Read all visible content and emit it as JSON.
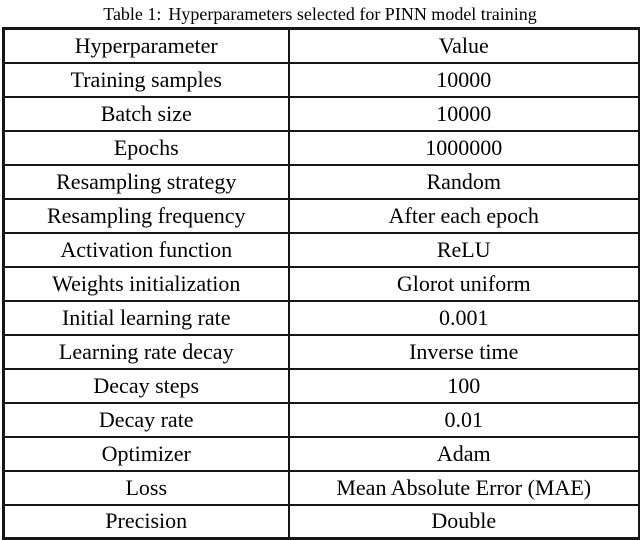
{
  "caption": {
    "label": "Table 1:",
    "text": "Hyperparameters selected for PINN model training"
  },
  "table": {
    "headers": [
      "Hyperparameter",
      "Value"
    ],
    "rows": [
      {
        "param": "Training samples",
        "value": "10000"
      },
      {
        "param": "Batch size",
        "value": "10000"
      },
      {
        "param": "Epochs",
        "value": "1000000"
      },
      {
        "param": "Resampling strategy",
        "value": "Random"
      },
      {
        "param": "Resampling frequency",
        "value": "After each epoch"
      },
      {
        "param": "Activation function",
        "value": "ReLU"
      },
      {
        "param": "Weights initialization",
        "value": "Glorot uniform"
      },
      {
        "param": "Initial learning rate",
        "value": "0.001"
      },
      {
        "param": "Learning rate decay",
        "value": "Inverse time"
      },
      {
        "param": "Decay steps",
        "value": "100"
      },
      {
        "param": "Decay rate",
        "value": "0.01"
      },
      {
        "param": "Optimizer",
        "value": "Adam"
      },
      {
        "param": "Loss",
        "value": "Mean Absolute Error (MAE)"
      },
      {
        "param": "Precision",
        "value": "Double"
      }
    ]
  },
  "colors": {
    "text": "#000000",
    "border": "#161616",
    "background": "#ffffff"
  }
}
